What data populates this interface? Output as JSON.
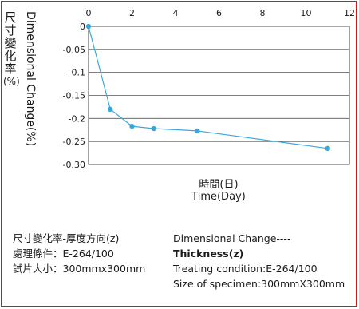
{
  "chart_data": {
    "type": "line",
    "x": [
      0,
      1,
      2,
      3,
      5,
      11
    ],
    "values": [
      0,
      -0.18,
      -0.217,
      -0.222,
      -0.227,
      -0.265
    ],
    "xticks": [
      "0",
      "2",
      "4",
      "6",
      "8",
      "10",
      "12"
    ],
    "xtick_values": [
      0,
      2,
      4,
      6,
      8,
      10,
      12
    ],
    "yticks": [
      "0",
      "-0.05",
      "-0.1",
      "-0.15",
      "-0.2",
      "-0.25",
      "-0.30"
    ],
    "ytick_values": [
      0,
      -0.05,
      -0.1,
      -0.15,
      -0.2,
      -0.25,
      -0.3
    ],
    "xlim": [
      0,
      12
    ],
    "ylim": [
      -0.3,
      0
    ],
    "grid": true,
    "line_color": "#3aa7dc",
    "ylabel_cn": [
      "尺",
      "寸",
      "變",
      "化",
      "率",
      "(%)"
    ],
    "ylabel_en": "Dimensional Change(%)",
    "xlabel_cn": "時間(日)",
    "xlabel_en": "Time(Day)"
  },
  "description": {
    "left": [
      "尺寸變化率-厚度方向(z)",
      "處理條件：E-264/100",
      "試片大小：300mmx300mm"
    ],
    "right_line1": "Dimensional Change----",
    "right_line2": "Thickness(z)",
    "right_line3": "Treating condition:E-264/100",
    "right_line4": "Size of specimen:300mmX300mm"
  }
}
